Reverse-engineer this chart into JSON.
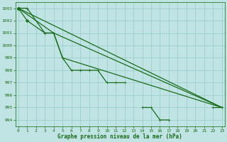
{
  "title": "Graphe pression niveau de la mer (hPa)",
  "background_color": "#c0e4e4",
  "grid_color": "#9ecece",
  "line_color": "#1a6b1a",
  "xlim": [
    -0.3,
    23.3
  ],
  "ylim": [
    993.5,
    1003.5
  ],
  "yticks": [
    994,
    995,
    996,
    997,
    998,
    999,
    1000,
    1001,
    1002,
    1003
  ],
  "xticks": [
    0,
    1,
    2,
    3,
    4,
    5,
    6,
    7,
    8,
    9,
    10,
    11,
    12,
    13,
    14,
    15,
    16,
    17,
    18,
    19,
    20,
    21,
    22,
    23
  ],
  "line1_x": [
    0,
    1,
    3,
    4,
    5,
    6,
    7,
    8,
    9,
    10,
    11,
    12,
    13,
    14,
    15,
    16,
    17,
    18,
    19,
    20,
    21,
    22,
    23
  ],
  "line1_y": [
    1003,
    1003,
    1001,
    1001,
    999,
    998,
    998,
    998,
    998,
    997,
    997,
    997,
    null,
    995,
    995,
    994,
    994,
    null,
    null,
    null,
    null,
    995,
    995
  ],
  "line2_x": [
    0,
    1,
    3,
    4,
    23
  ],
  "line2_y": [
    1003,
    1002,
    1001,
    1001,
    995
  ],
  "line3_x": [
    0,
    23
  ],
  "line3_y": [
    1003,
    995
  ],
  "line4_x": [
    0,
    4,
    5,
    23
  ],
  "line4_y": [
    1003,
    1001,
    999,
    995
  ]
}
